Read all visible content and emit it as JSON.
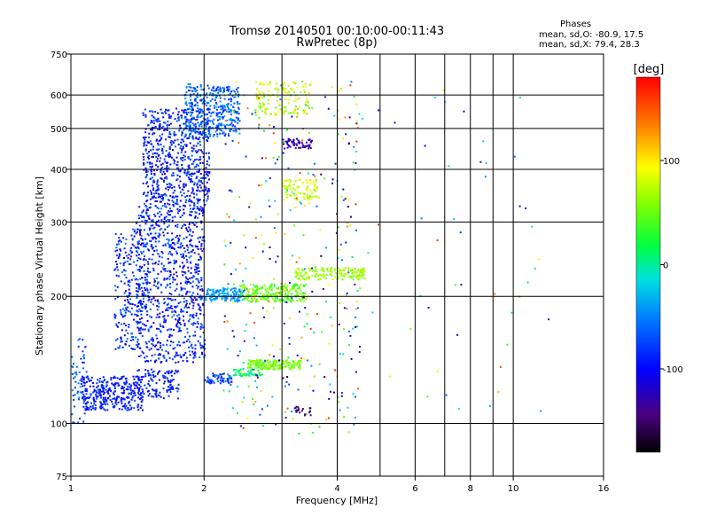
{
  "chart_data": {
    "type": "scatter",
    "title": "Tromsø 20140501 00:10:00-00:11:43",
    "subtitle": "RwPretec (8p)",
    "xlabel": "Frequency [MHz]",
    "ylabel": "Stationary phase Virtual Height [km]",
    "x_scale": "log",
    "y_scale": "log",
    "xlim": [
      1,
      16
    ],
    "ylim": [
      75,
      750
    ],
    "x_ticks": [
      "1",
      "2",
      "4",
      "6",
      "8",
      "10",
      "16"
    ],
    "x_tick_values": [
      1,
      2,
      4,
      6,
      8,
      10,
      16
    ],
    "x_minor_tick_values": [
      3,
      5,
      7,
      9
    ],
    "y_ticks": [
      "75",
      "100",
      "200",
      "300",
      "400",
      "500",
      "600",
      "750"
    ],
    "y_tick_values": [
      75,
      100,
      200,
      300,
      400,
      500,
      600,
      750
    ],
    "grid": true,
    "stats": {
      "header": "Phases",
      "line_o": "mean, sd,O: -80.9, 17.5",
      "line_x": "mean, sd,X:  79.4, 28.3"
    },
    "colorbar": {
      "label": "[deg]",
      "range": [
        -180,
        180
      ],
      "ticks": [
        "100",
        "0",
        "-100"
      ],
      "tick_values": [
        100,
        0,
        -100
      ]
    },
    "point_count": 4500,
    "clusters": [
      {
        "f": [
          1.0,
          1.08
        ],
        "h": [
          100,
          160
        ],
        "phase": [
          -90,
          -40
        ],
        "n": 60
      },
      {
        "f": [
          1.05,
          1.45
        ],
        "h": [
          108,
          130
        ],
        "phase": [
          -110,
          -70
        ],
        "n": 320
      },
      {
        "f": [
          1.4,
          1.75
        ],
        "h": [
          115,
          135
        ],
        "phase": [
          -110,
          -70
        ],
        "n": 120
      },
      {
        "f": [
          1.25,
          1.45
        ],
        "h": [
          150,
          290
        ],
        "phase": [
          -120,
          -50
        ],
        "n": 220
      },
      {
        "f": [
          1.4,
          2.0
        ],
        "h": [
          140,
          330
        ],
        "phase": [
          -130,
          -50
        ],
        "n": 900
      },
      {
        "f": [
          1.45,
          2.05
        ],
        "h": [
          330,
          560
        ],
        "phase": [
          -120,
          -60
        ],
        "n": 650
      },
      {
        "f": [
          1.8,
          2.4
        ],
        "h": [
          480,
          640
        ],
        "phase": [
          -90,
          -30
        ],
        "n": 380
      },
      {
        "f": [
          2.0,
          2.5
        ],
        "h": [
          195,
          210
        ],
        "phase": [
          -60,
          -20
        ],
        "n": 140
      },
      {
        "f": [
          2.0,
          2.3
        ],
        "h": [
          125,
          132
        ],
        "phase": [
          -100,
          -50
        ],
        "n": 60
      },
      {
        "f": [
          2.3,
          2.7
        ],
        "h": [
          130,
          135
        ],
        "phase": [
          -20,
          40
        ],
        "n": 50
      },
      {
        "f": [
          2.5,
          3.3
        ],
        "h": [
          135,
          142
        ],
        "phase": [
          40,
          70
        ],
        "n": 180
      },
      {
        "f": [
          2.4,
          3.4
        ],
        "h": [
          195,
          215
        ],
        "phase": [
          20,
          80
        ],
        "n": 240
      },
      {
        "f": [
          3.2,
          4.6
        ],
        "h": [
          220,
          235
        ],
        "phase": [
          50,
          80
        ],
        "n": 160
      },
      {
        "f": [
          3.0,
          3.6
        ],
        "h": [
          340,
          380
        ],
        "phase": [
          60,
          100
        ],
        "n": 90
      },
      {
        "f": [
          2.6,
          3.5
        ],
        "h": [
          540,
          650
        ],
        "phase": [
          40,
          110
        ],
        "n": 140
      },
      {
        "f": [
          3.0,
          3.5
        ],
        "h": [
          450,
          475
        ],
        "phase": [
          -150,
          -110
        ],
        "n": 60
      },
      {
        "f": [
          2.2,
          4.5
        ],
        "h": [
          95,
          650
        ],
        "phase": [
          -170,
          170
        ],
        "n": 350
      },
      {
        "f": [
          4.0,
          12.0
        ],
        "h": [
          100,
          620
        ],
        "phase": [
          -160,
          170
        ],
        "n": 50
      },
      {
        "f": [
          3.2,
          3.5
        ],
        "h": [
          105,
          110
        ],
        "phase": [
          -160,
          -140
        ],
        "n": 20
      }
    ]
  }
}
